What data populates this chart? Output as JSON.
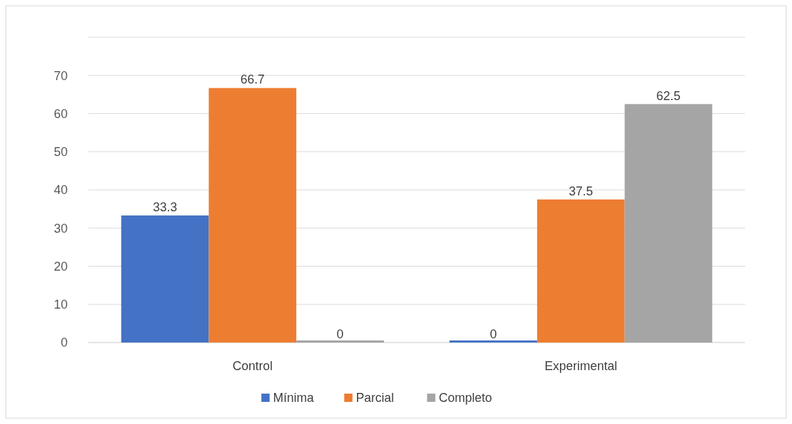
{
  "chart_data": {
    "type": "bar",
    "categories": [
      "Control",
      "Experimental"
    ],
    "series": [
      {
        "name": "Mínima",
        "color": "#4472c4",
        "values": [
          33.3,
          0
        ]
      },
      {
        "name": "Parcial",
        "color": "#ed7d31",
        "values": [
          66.7,
          37.5
        ]
      },
      {
        "name": "Completo",
        "color": "#a5a5a5",
        "values": [
          0,
          62.5
        ]
      }
    ],
    "ylim": [
      0,
      80
    ],
    "yticks": [
      0,
      10,
      20,
      30,
      40,
      50,
      60,
      70,
      {
        "value": 80,
        "label": null
      }
    ],
    "grid": "y",
    "data_labels": true,
    "legend": "bottom"
  }
}
